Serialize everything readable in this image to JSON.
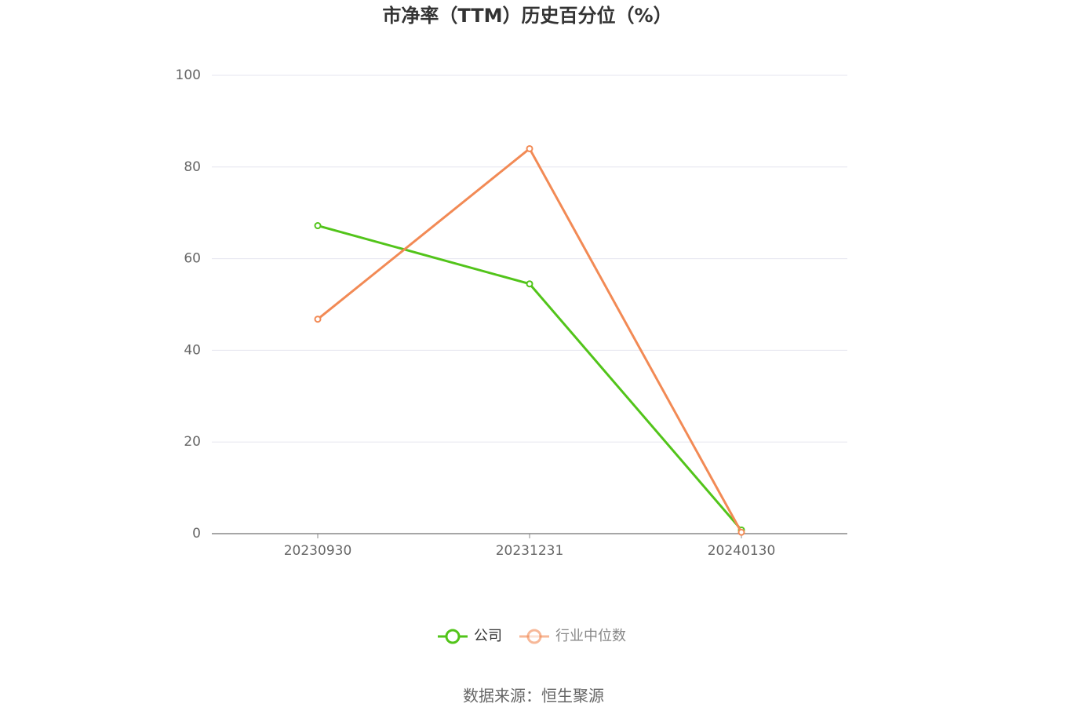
{
  "chart_data": {
    "type": "line",
    "title": "市净率（TTM）历史百分位（%）",
    "categories": [
      "20230930",
      "20231231",
      "20240130"
    ],
    "series": [
      {
        "name": "公司",
        "color": "#52c41a",
        "values": [
          67.2,
          54.5,
          0.8
        ]
      },
      {
        "name": "行业中位数",
        "color": "#f28a55",
        "values": [
          46.8,
          84.0,
          0.3
        ]
      }
    ],
    "ylim": [
      0,
      100
    ],
    "yticks": [
      0,
      20,
      40,
      60,
      80,
      100
    ],
    "grid": true,
    "legend": "bottom",
    "source": "数据来源：恒生聚源"
  }
}
